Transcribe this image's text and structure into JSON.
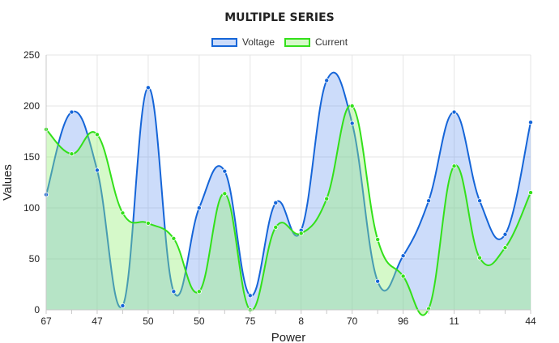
{
  "chart_data": {
    "type": "area",
    "title": "MULTIPLE SERIES",
    "xlabel": "Power",
    "ylabel": "Values",
    "ylim": [
      0,
      250
    ],
    "y_ticks": [
      0,
      50,
      100,
      150,
      200,
      250
    ],
    "x": [
      "67",
      "",
      "47",
      "",
      "50",
      "",
      "50",
      "",
      "75",
      "",
      "8",
      "",
      "70",
      "",
      "96",
      "",
      "11",
      "",
      "",
      "44"
    ],
    "x_tick_labels": [
      "67",
      "47",
      "50",
      "50",
      "75",
      "8",
      "70",
      "96",
      "11",
      "44"
    ],
    "grid": true,
    "legend": "top-center",
    "series": [
      {
        "name": "Voltage",
        "color": "#1565d8",
        "fill": "rgba(100,150,240,0.33)",
        "values": [
          113,
          194,
          137,
          4,
          218,
          18,
          100,
          136,
          14,
          105,
          78,
          225,
          183,
          28,
          53,
          107,
          194,
          107,
          74,
          184
        ]
      },
      {
        "name": "Current",
        "color": "#33e01a",
        "fill": "rgba(150,240,120,0.40)",
        "values": [
          177,
          153,
          172,
          95,
          85,
          70,
          18,
          114,
          0,
          81,
          75,
          109,
          200,
          69,
          33,
          1,
          141,
          51,
          61,
          115
        ]
      }
    ]
  }
}
